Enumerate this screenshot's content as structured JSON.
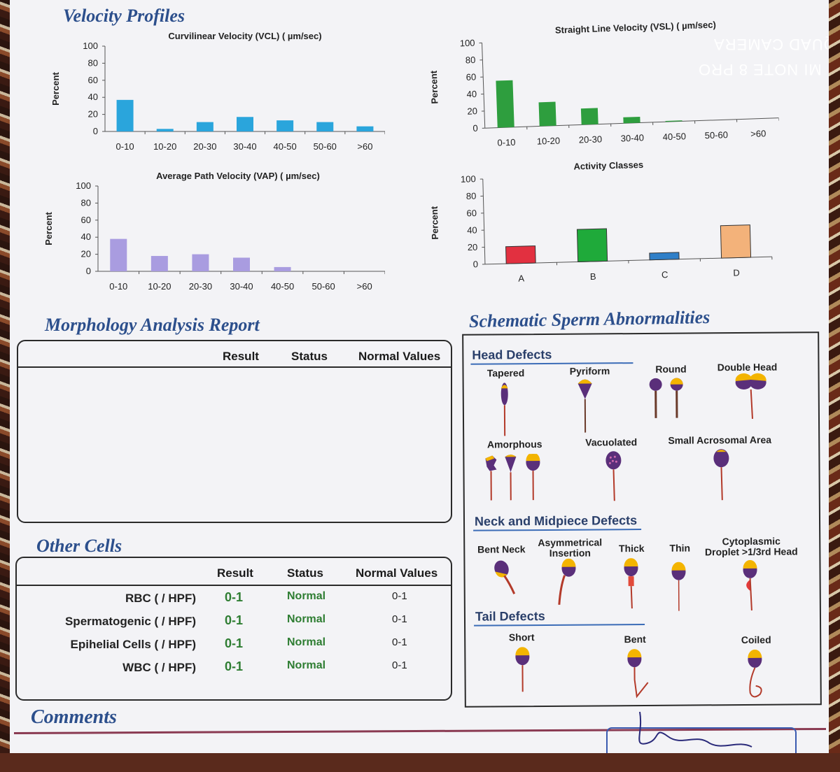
{
  "watermark": {
    "line1": "MI NOTE 8 PRO",
    "line2": "AI QUAD CAMERA"
  },
  "velocity_profiles": {
    "title": "Velocity Profiles"
  },
  "chart_data": [
    {
      "type": "bar",
      "title": "Curvilinear Velocity (VCL) ( µm/sec)",
      "ylabel": "Percent",
      "categories": [
        "0-10",
        "10-20",
        "20-30",
        "30-40",
        "40-50",
        "50-60",
        ">60"
      ],
      "values": [
        37,
        3,
        11,
        17,
        13,
        11,
        6
      ],
      "ylim": [
        0,
        100
      ],
      "yticks": [
        0,
        20,
        40,
        60,
        80,
        100
      ],
      "color": "#2aa5dc"
    },
    {
      "type": "bar",
      "title": "Straight Line Velocity (VSL) ( µm/sec)",
      "ylabel": "Percent",
      "categories": [
        "0-10",
        "10-20",
        "20-30",
        "30-40",
        "40-50",
        "50-60",
        ">60"
      ],
      "values": [
        55,
        28,
        19,
        7,
        1,
        0,
        0
      ],
      "ylim": [
        0,
        100
      ],
      "yticks": [
        0,
        20,
        40,
        60,
        80,
        100
      ],
      "color": "#2e9e3e"
    },
    {
      "type": "bar",
      "title": "Average Path Velocity (VAP) ( µm/sec)",
      "ylabel": "Percent",
      "categories": [
        "0-10",
        "10-20",
        "20-30",
        "30-40",
        "40-50",
        "50-60",
        ">60"
      ],
      "values": [
        38,
        18,
        20,
        16,
        5,
        0,
        0
      ],
      "ylim": [
        0,
        100
      ],
      "yticks": [
        0,
        20,
        40,
        60,
        80,
        100
      ],
      "color": "#a99ce0"
    },
    {
      "type": "bar",
      "title": "Activity Classes",
      "ylabel": "Percent",
      "categories": [
        "A",
        "B",
        "C",
        "D"
      ],
      "values": [
        20,
        38,
        8,
        38
      ],
      "ylim": [
        0,
        100
      ],
      "yticks": [
        0,
        20,
        40,
        60,
        80,
        100
      ],
      "colors": [
        "#e23040",
        "#1faa3a",
        "#2f7fc8",
        "#f3b27a"
      ]
    }
  ],
  "morphology": {
    "title": "Morphology Analysis Report",
    "headers": {
      "result": "Result",
      "status": "Status",
      "normal": "Normal Values"
    }
  },
  "other_cells": {
    "title": "Other Cells",
    "headers": {
      "result": "Result",
      "status": "Status",
      "normal": "Normal Values"
    },
    "rows": [
      {
        "label": "RBC ( / HPF)",
        "result": "0-1",
        "status": "Normal",
        "normal": "0-1"
      },
      {
        "label": "Spermatogenic ( / HPF)",
        "result": "0-1",
        "status": "Normal",
        "normal": "0-1"
      },
      {
        "label": "Epihelial Cells ( / HPF)",
        "result": "0-1",
        "status": "Normal",
        "normal": "0-1"
      },
      {
        "label": "WBC ( / HPF)",
        "result": "0-1",
        "status": "Normal",
        "normal": "0-1"
      }
    ]
  },
  "comments": {
    "title": "Comments"
  },
  "schematic": {
    "title": "Schematic Sperm Abnormalities",
    "head_defects": {
      "title": "Head Defects",
      "items": [
        "Tapered",
        "Pyriform",
        "Round",
        "Double Head",
        "Amorphous",
        "Vacuolated",
        "Small Acrosomal Area"
      ]
    },
    "neck_defects": {
      "title": "Neck and Midpiece Defects",
      "items": [
        "Bent Neck",
        "Asymmetrical",
        "Insertion",
        "Thick",
        "Thin",
        "Cytoplasmic",
        "Droplet >1/3rd Head"
      ]
    },
    "tail_defects": {
      "title": "Tail Defects",
      "items": [
        "Short",
        "Bent",
        "Coiled"
      ]
    }
  }
}
